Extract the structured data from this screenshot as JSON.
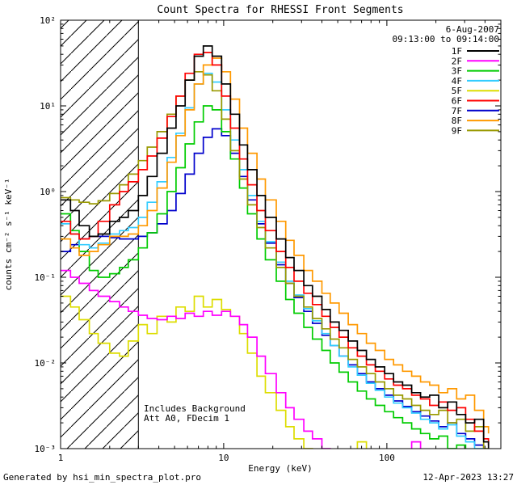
{
  "footer": {
    "left": "Generated by hsi_min_spectra_plot.pro",
    "right": "12-Apr-2023 13:27"
  },
  "chart_data": {
    "type": "line",
    "title": "Count Spectra for RHESSI Front Segments",
    "xlabel": "Energy (keV)",
    "ylabel": "counts cm⁻² s⁻¹ keV⁻¹",
    "xscale": "log",
    "yscale": "log",
    "xlim": [
      1,
      500
    ],
    "ylim": [
      0.001,
      100
    ],
    "x_ticks": [
      1,
      10,
      100
    ],
    "x_tick_labels": [
      "1",
      "10",
      "100"
    ],
    "y_ticks": [
      0.001,
      0.01,
      0.1,
      1,
      10,
      100
    ],
    "y_tick_labels": [
      "10⁻³",
      "10⁻²",
      "10⁻¹",
      "10⁰",
      "10¹",
      "10²"
    ],
    "grid": false,
    "legend_position": "top-right",
    "hatch_region_kev": [
      1,
      3
    ],
    "legend": {
      "date_line1": "6-Aug-2007",
      "date_line2": "09:13:00 to 09:14:00"
    },
    "annotations": [
      "Includes Background",
      "Att A0, FDecim 1"
    ],
    "energies_kev": [
      1.0,
      1.15,
      1.3,
      1.5,
      1.7,
      2.0,
      2.3,
      2.6,
      3.0,
      3.4,
      3.9,
      4.5,
      5.1,
      5.8,
      6.6,
      7.5,
      8.5,
      9.7,
      11,
      12.5,
      14,
      16,
      18,
      21,
      24,
      27,
      31,
      35,
      40,
      45,
      51,
      58,
      66,
      75,
      85,
      97,
      110,
      125,
      142,
      161,
      183,
      208,
      236,
      268,
      304,
      345,
      392,
      420
    ],
    "series": [
      {
        "name": "1F",
        "color": "#000000",
        "values": [
          0.8,
          0.6,
          0.4,
          0.3,
          0.32,
          0.45,
          0.5,
          0.6,
          0.9,
          1.5,
          2.8,
          5.5,
          10,
          20,
          38,
          50,
          38,
          18,
          8,
          3.5,
          1.8,
          0.9,
          0.5,
          0.28,
          0.17,
          0.12,
          0.08,
          0.06,
          0.042,
          0.03,
          0.024,
          0.018,
          0.014,
          0.011,
          0.009,
          0.0075,
          0.006,
          0.0055,
          0.0045,
          0.004,
          0.0042,
          0.003,
          0.0035,
          0.0025,
          0.002,
          0.0022,
          0.0012,
          0.001
        ]
      },
      {
        "name": "2F",
        "color": "#ff00ff",
        "values": [
          0.12,
          0.1,
          0.085,
          0.07,
          0.06,
          0.052,
          0.045,
          0.04,
          0.036,
          0.033,
          0.032,
          0.035,
          0.033,
          0.038,
          0.035,
          0.04,
          0.036,
          0.04,
          0.035,
          0.028,
          0.02,
          0.012,
          0.0075,
          0.0045,
          0.003,
          0.0022,
          0.0016,
          0.0013,
          0.001,
          0.0009,
          0.0008,
          0.0007,
          0.0006,
          0.00055,
          0.0005,
          0.00045,
          0.0004,
          0.0004,
          0.0012,
          0.0005,
          0.0004,
          0.0009,
          0.0004,
          0.0003,
          0.0003,
          0.0003,
          0.0003,
          0.0003
        ]
      },
      {
        "name": "3F",
        "color": "#00cc00",
        "values": [
          0.55,
          0.35,
          0.2,
          0.12,
          0.1,
          0.11,
          0.13,
          0.16,
          0.22,
          0.33,
          0.55,
          1.0,
          1.9,
          3.6,
          6.5,
          10,
          9,
          5,
          2.4,
          1.1,
          0.55,
          0.28,
          0.16,
          0.09,
          0.055,
          0.038,
          0.026,
          0.019,
          0.014,
          0.01,
          0.0078,
          0.006,
          0.0047,
          0.0038,
          0.0032,
          0.0027,
          0.0023,
          0.002,
          0.0017,
          0.0015,
          0.0013,
          0.0014,
          0.001,
          0.0011,
          0.0008,
          0.0009,
          0.0006,
          0.0005
        ]
      },
      {
        "name": "4F",
        "color": "#33ccff",
        "values": [
          0.42,
          0.32,
          0.24,
          0.22,
          0.25,
          0.32,
          0.35,
          0.38,
          0.5,
          0.75,
          1.3,
          2.5,
          4.8,
          9.5,
          18,
          24,
          19,
          9,
          4,
          1.8,
          0.9,
          0.45,
          0.26,
          0.15,
          0.09,
          0.062,
          0.043,
          0.031,
          0.022,
          0.016,
          0.012,
          0.009,
          0.0072,
          0.0058,
          0.0048,
          0.004,
          0.0034,
          0.003,
          0.0026,
          0.0022,
          0.002,
          0.0017,
          0.0019,
          0.0014,
          0.0012,
          0.001,
          0.0008,
          0.0007
        ]
      },
      {
        "name": "5F",
        "color": "#dddd00",
        "values": [
          0.06,
          0.045,
          0.032,
          0.022,
          0.017,
          0.013,
          0.012,
          0.018,
          0.028,
          0.022,
          0.035,
          0.03,
          0.045,
          0.04,
          0.06,
          0.045,
          0.055,
          0.042,
          0.035,
          0.022,
          0.013,
          0.007,
          0.0045,
          0.0028,
          0.0018,
          0.0013,
          0.001,
          0.0008,
          0.0007,
          0.0006,
          0.0005,
          0.00045,
          0.0012,
          0.0004,
          0.00035,
          0.0008,
          0.0003,
          0.0003,
          0.0003,
          0.0003,
          0.0003,
          0.0003,
          0.0003,
          0.0003,
          0.0003,
          0.0003,
          0.0003,
          0.0003
        ]
      },
      {
        "name": "6F",
        "color": "#ff0000",
        "values": [
          0.45,
          0.32,
          0.28,
          0.3,
          0.45,
          0.7,
          1.0,
          1.3,
          1.8,
          2.6,
          4.2,
          7.5,
          13,
          24,
          40,
          42,
          30,
          13,
          5.5,
          2.4,
          1.2,
          0.6,
          0.35,
          0.2,
          0.13,
          0.09,
          0.065,
          0.048,
          0.035,
          0.026,
          0.02,
          0.015,
          0.012,
          0.0095,
          0.008,
          0.0065,
          0.0055,
          0.005,
          0.0042,
          0.0038,
          0.0032,
          0.0035,
          0.0028,
          0.003,
          0.0022,
          0.0016,
          0.0013,
          0.0011
        ]
      },
      {
        "name": "7F",
        "color": "#0000cc",
        "values": [
          0.2,
          0.24,
          0.28,
          0.3,
          0.3,
          0.29,
          0.28,
          0.28,
          0.3,
          0.33,
          0.42,
          0.6,
          0.95,
          1.6,
          2.8,
          4.3,
          5.4,
          4.5,
          2.8,
          1.5,
          0.8,
          0.42,
          0.25,
          0.14,
          0.085,
          0.058,
          0.04,
          0.029,
          0.021,
          0.016,
          0.012,
          0.0095,
          0.0075,
          0.006,
          0.005,
          0.0042,
          0.0036,
          0.0031,
          0.0027,
          0.0024,
          0.0021,
          0.0018,
          0.002,
          0.0015,
          0.0013,
          0.0011,
          0.0008,
          0.0007
        ]
      },
      {
        "name": "8F",
        "color": "#ff9900",
        "values": [
          0.28,
          0.22,
          0.18,
          0.2,
          0.24,
          0.3,
          0.3,
          0.32,
          0.4,
          0.6,
          1.1,
          2.2,
          4.5,
          9,
          18,
          30,
          36,
          25,
          12,
          5.5,
          2.8,
          1.4,
          0.8,
          0.45,
          0.27,
          0.18,
          0.12,
          0.09,
          0.065,
          0.05,
          0.038,
          0.028,
          0.022,
          0.017,
          0.014,
          0.011,
          0.0095,
          0.008,
          0.007,
          0.006,
          0.0055,
          0.0045,
          0.005,
          0.0038,
          0.0042,
          0.0028,
          0.0018,
          0.0015
        ]
      },
      {
        "name": "9F",
        "color": "#999900",
        "values": [
          0.85,
          0.8,
          0.75,
          0.72,
          0.78,
          0.95,
          1.2,
          1.6,
          2.3,
          3.3,
          5,
          8,
          13,
          20,
          25,
          23,
          15,
          7,
          3,
          1.4,
          0.7,
          0.38,
          0.22,
          0.13,
          0.085,
          0.06,
          0.045,
          0.033,
          0.025,
          0.019,
          0.015,
          0.011,
          0.009,
          0.0075,
          0.006,
          0.005,
          0.0042,
          0.0038,
          0.0032,
          0.0028,
          0.0025,
          0.0028,
          0.002,
          0.0022,
          0.0016,
          0.0018,
          0.001,
          0.0008
        ]
      }
    ],
    "draw_order": [
      "5F",
      "2F",
      "7F",
      "3F",
      "4F",
      "9F",
      "8F",
      "6F",
      "1F"
    ]
  }
}
